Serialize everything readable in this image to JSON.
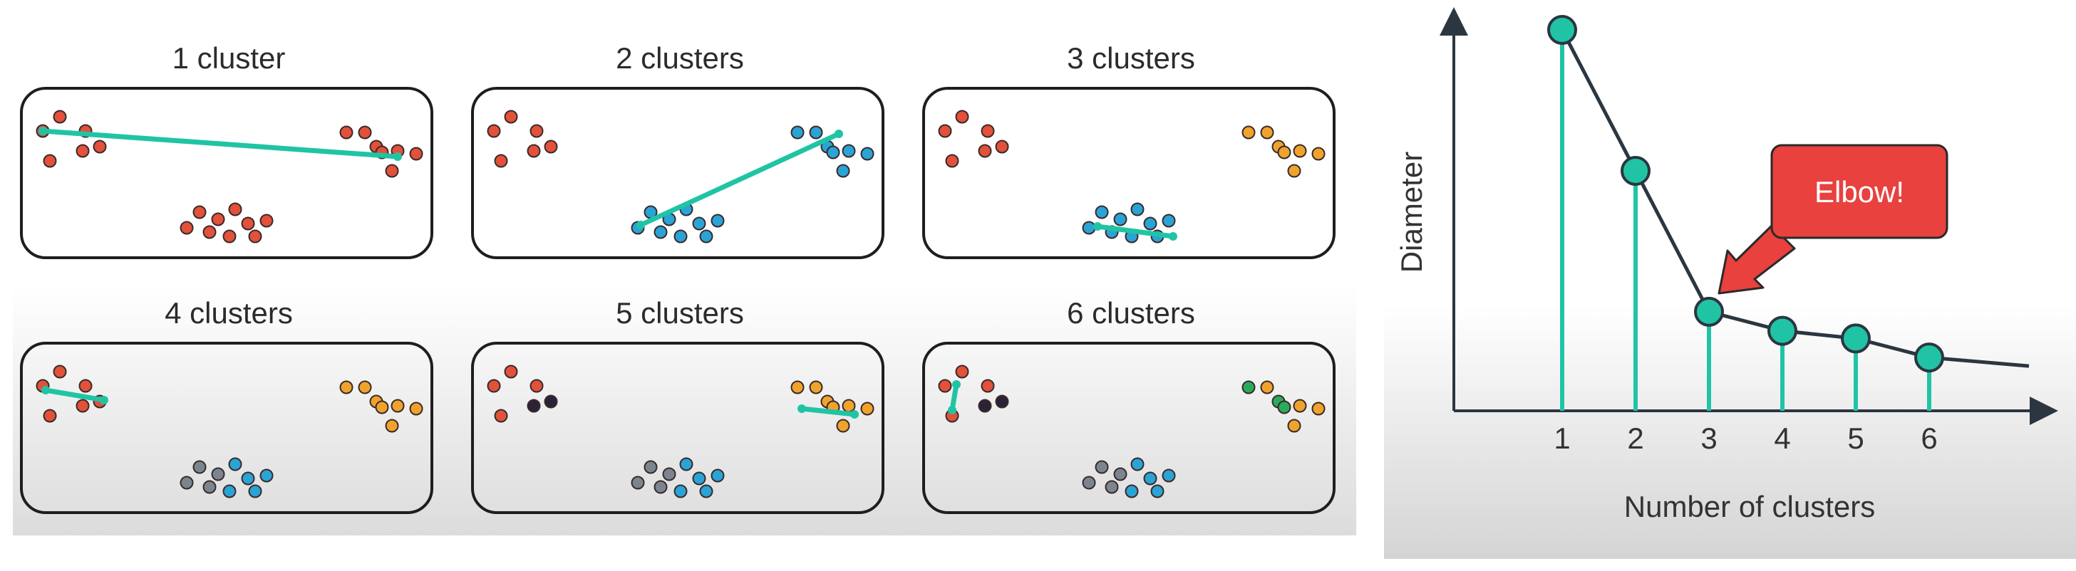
{
  "panels": [
    {
      "title": "1 cluster"
    },
    {
      "title": "2 clusters"
    },
    {
      "title": "3 clusters"
    },
    {
      "title": "4 clusters"
    },
    {
      "title": "5 clusters"
    },
    {
      "title": "6 clusters"
    }
  ],
  "colors": {
    "red": "#e2513a",
    "blue": "#2aa3d6",
    "orange": "#f0a32c",
    "gray": "#7b8590",
    "dark": "#2c2238",
    "green": "#2aab5c",
    "teal": "#20c4a5",
    "axis": "#2b3640",
    "callout": "#e8413e"
  },
  "chart_data": {
    "type": "line",
    "xlabel": "Number of clusters",
    "ylabel": "Diameter",
    "categories": [
      "1",
      "2",
      "3",
      "4",
      "5",
      "6"
    ],
    "series": [
      {
        "values": [
          1.0,
          0.63,
          0.26,
          0.21,
          0.19,
          0.14
        ]
      }
    ],
    "annotation": "Elbow!",
    "grid": false
  }
}
